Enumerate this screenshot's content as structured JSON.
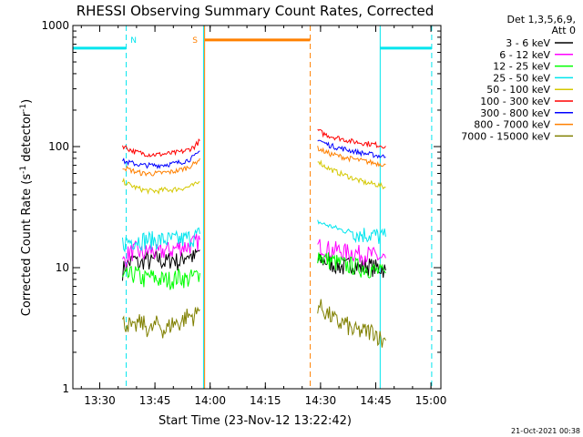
{
  "chart_data": {
    "type": "line",
    "title": "RHESSI Observing Summary Count Rates, Corrected",
    "xlabel": "Start Time (23-Nov-12 13:22:42)",
    "ylabel_main": "Corrected Count Rate (s",
    "ylabel_sup": "-1",
    "ylabel_tail": " detector",
    "ylabel_sup2": "-1",
    "ylabel_close": ")",
    "x_unit": "minutes after 13:22:42",
    "xlim": [
      0,
      100
    ],
    "ylim": [
      1,
      1000
    ],
    "yscale": "log",
    "x_ticks": [
      {
        "x": 7.3,
        "label": "13:30"
      },
      {
        "x": 22.3,
        "label": "13:45"
      },
      {
        "x": 37.3,
        "label": "14:00"
      },
      {
        "x": 52.3,
        "label": "14:15"
      },
      {
        "x": 67.3,
        "label": "14:30"
      },
      {
        "x": 82.3,
        "label": "14:45"
      },
      {
        "x": 97.3,
        "label": "15:00"
      }
    ],
    "y_ticks": [
      {
        "y": 1,
        "label": "1"
      },
      {
        "y": 10,
        "label": "10"
      },
      {
        "y": 100,
        "label": "100"
      },
      {
        "y": 1000,
        "label": "1000"
      }
    ],
    "legend": {
      "placement": "right",
      "header1": "Det 1,3,5,6,9,",
      "header2": "Att 0",
      "entries": [
        {
          "label": "3 - 6 keV",
          "color": "#000000"
        },
        {
          "label": "6 - 12 keV",
          "color": "#ff00ff"
        },
        {
          "label": "12 - 25 keV",
          "color": "#00ff00"
        },
        {
          "label": "25 - 50 keV",
          "color": "#00e5ee"
        },
        {
          "label": "50 - 100 keV",
          "color": "#d4c800"
        },
        {
          "label": "100 - 300 keV",
          "color": "#ff0000"
        },
        {
          "label": "300 - 800 keV",
          "color": "#0000ff"
        },
        {
          "label": "800 - 7000 keV",
          "color": "#ff8000"
        },
        {
          "label": "7000 - 15000 keV",
          "color": "#808000"
        }
      ]
    },
    "series": [
      {
        "name": "3 - 6 keV",
        "color": "#000000",
        "segments": [
          {
            "x": [
              13.5,
              14.5,
              15.5,
              16.5,
              17.5,
              18.5,
              19.5,
              21,
              23,
              25,
              27,
              29,
              31,
              33,
              34.5
            ],
            "y": [
              9.5,
              10.5,
              11,
              12,
              11,
              10.5,
              12,
              11,
              12,
              11,
              12,
              11,
              13,
              12,
              14
            ]
          },
          {
            "x": [
              66.5,
              68,
              70,
              72,
              74,
              76,
              78,
              80,
              82,
              84,
              85
            ],
            "y": [
              11,
              11.5,
              11,
              10.5,
              10,
              11,
              10,
              10.5,
              10,
              10,
              9.5
            ]
          }
        ]
      },
      {
        "name": "6 - 12 keV",
        "color": "#ff00ff",
        "segments": [
          {
            "x": [
              13.5,
              15,
              17,
              19,
              21,
              23,
              25,
              27,
              29,
              31,
              33,
              34.5
            ],
            "y": [
              11,
              13,
              14,
              13,
              14,
              13,
              14,
              14,
              15,
              15,
              16,
              17
            ]
          },
          {
            "x": [
              66.5,
              68,
              70,
              72,
              74,
              76,
              78,
              80,
              82,
              84,
              85
            ],
            "y": [
              15,
              15,
              14,
              14,
              13.5,
              13.5,
              13,
              13,
              12.5,
              12,
              12
            ]
          }
        ]
      },
      {
        "name": "12 - 25 keV",
        "color": "#00ff00",
        "segments": [
          {
            "x": [
              13.5,
              15,
              17,
              19,
              21,
              23,
              25,
              27,
              29,
              31,
              33,
              34.5
            ],
            "y": [
              8,
              8.5,
              9,
              8,
              8.5,
              8,
              8,
              8,
              8.5,
              8,
              8.5,
              9
            ]
          },
          {
            "x": [
              66.5,
              68,
              70,
              72,
              74,
              76,
              78,
              80,
              82,
              84,
              85
            ],
            "y": [
              13,
              12,
              11.5,
              11,
              10.5,
              10.5,
              10,
              10,
              9.5,
              9,
              9
            ]
          }
        ]
      },
      {
        "name": "25 - 50 keV",
        "color": "#00e5ee",
        "segments": [
          {
            "x": [
              13.5,
              15,
              17,
              19,
              21,
              23,
              25,
              27,
              29,
              31,
              33,
              34.5
            ],
            "y": [
              16,
              16.5,
              17,
              17,
              17,
              17,
              17,
              17,
              17,
              17.5,
              18,
              19
            ]
          },
          {
            "x": [
              66.5,
              68,
              70,
              72,
              74,
              76,
              78,
              80,
              82,
              84,
              85
            ],
            "y": [
              24,
              23,
              22,
              21,
              20,
              20,
              19,
              19,
              18.5,
              18,
              18
            ]
          }
        ]
      },
      {
        "name": "50 - 100 keV",
        "color": "#d4c800",
        "segments": [
          {
            "x": [
              13.5,
              15,
              17,
              19,
              21,
              23,
              25,
              27,
              29,
              31,
              33,
              34.5
            ],
            "y": [
              52,
              49,
              46,
              44,
              43,
              43,
              44,
              44,
              45,
              46,
              48,
              51
            ]
          },
          {
            "x": [
              66.5,
              68,
              70,
              72,
              74,
              76,
              78,
              80,
              82,
              84,
              85
            ],
            "y": [
              78,
              70,
              65,
              61,
              58,
              55,
              52,
              50,
              49,
              47,
              46
            ]
          }
        ]
      },
      {
        "name": "100 - 300 keV",
        "color": "#ff0000",
        "segments": [
          {
            "x": [
              13.5,
              15,
              17,
              19,
              21,
              23,
              25,
              27,
              29,
              31,
              33,
              34.5
            ],
            "y": [
              102,
              96,
              90,
              88,
              86,
              86,
              87,
              88,
              90,
              93,
              100,
              112
            ]
          },
          {
            "x": [
              66.5,
              68,
              70,
              72,
              74,
              76,
              78,
              80,
              82,
              84,
              85
            ],
            "y": [
              137,
              128,
              122,
              118,
              114,
              110,
              108,
              106,
              104,
              102,
              101
            ]
          }
        ]
      },
      {
        "name": "300 - 800 keV",
        "color": "#0000ff",
        "segments": [
          {
            "x": [
              13.5,
              15,
              17,
              19,
              21,
              23,
              25,
              27,
              29,
              31,
              33,
              34.5
            ],
            "y": [
              76,
              74,
              72,
              70,
              70,
              70,
              71,
              72,
              74,
              77,
              82,
              92
            ]
          },
          {
            "x": [
              66.5,
              68,
              70,
              72,
              74,
              76,
              78,
              80,
              82,
              84,
              85
            ],
            "y": [
              116,
              108,
              102,
              98,
              95,
              92,
              89,
              87,
              85,
              83,
              82
            ]
          }
        ]
      },
      {
        "name": "800 - 7000 keV",
        "color": "#ff8000",
        "segments": [
          {
            "x": [
              13.5,
              15,
              17,
              19,
              21,
              23,
              25,
              27,
              29,
              31,
              33,
              34.5
            ],
            "y": [
              68,
              65,
              62,
              60,
              60,
              60,
              61,
              62,
              64,
              67,
              72,
              80
            ]
          },
          {
            "x": [
              66.5,
              68,
              70,
              72,
              74,
              76,
              78,
              80,
              82,
              84,
              85
            ],
            "y": [
              97,
              92,
              87,
              84,
              81,
              79,
              77,
              75,
              73,
              72,
              71
            ]
          }
        ]
      },
      {
        "name": "7000 - 15000 keV",
        "color": "#808000",
        "segments": [
          {
            "x": [
              13.5,
              15,
              16.5,
              17.5,
              19,
              21,
              23,
              25,
              27,
              29,
              31,
              33,
              34.5
            ],
            "y": [
              3.5,
              3.5,
              3,
              3.5,
              3.5,
              3,
              3.5,
              3,
              3.5,
              3.5,
              4,
              4,
              4.5
            ]
          },
          {
            "x": [
              66.5,
              68,
              70,
              72,
              74,
              76,
              78,
              80,
              82,
              84,
              85
            ],
            "y": [
              5,
              4.5,
              4,
              3.5,
              3.5,
              3,
              3,
              3,
              3,
              2.5,
              2.5
            ]
          }
        ]
      }
    ],
    "overlays": {
      "night_color": "#00e5ee",
      "saa_color": "#ff8000",
      "day_intervals": [
        [
          0,
          14.5
        ],
        [
          83.5,
          97.5
        ]
      ],
      "day_level": 650,
      "saa_interval": [
        35.8,
        64.5
      ],
      "saa_level": 760,
      "solid_cyan_lines": [
        0,
        35.5,
        83.5
      ],
      "dashed_cyan_lines": [
        14.5,
        97.5
      ],
      "solid_orange_lines": [
        35.8
      ],
      "dashed_orange_lines": [
        64.5
      ],
      "flags": [
        {
          "x": 16.5,
          "label": "N",
          "color": "#00e5ee"
        },
        {
          "x": 33.2,
          "label": "S",
          "color": "#ff8000"
        }
      ]
    },
    "footer": "21-Oct-2021 00:38"
  }
}
